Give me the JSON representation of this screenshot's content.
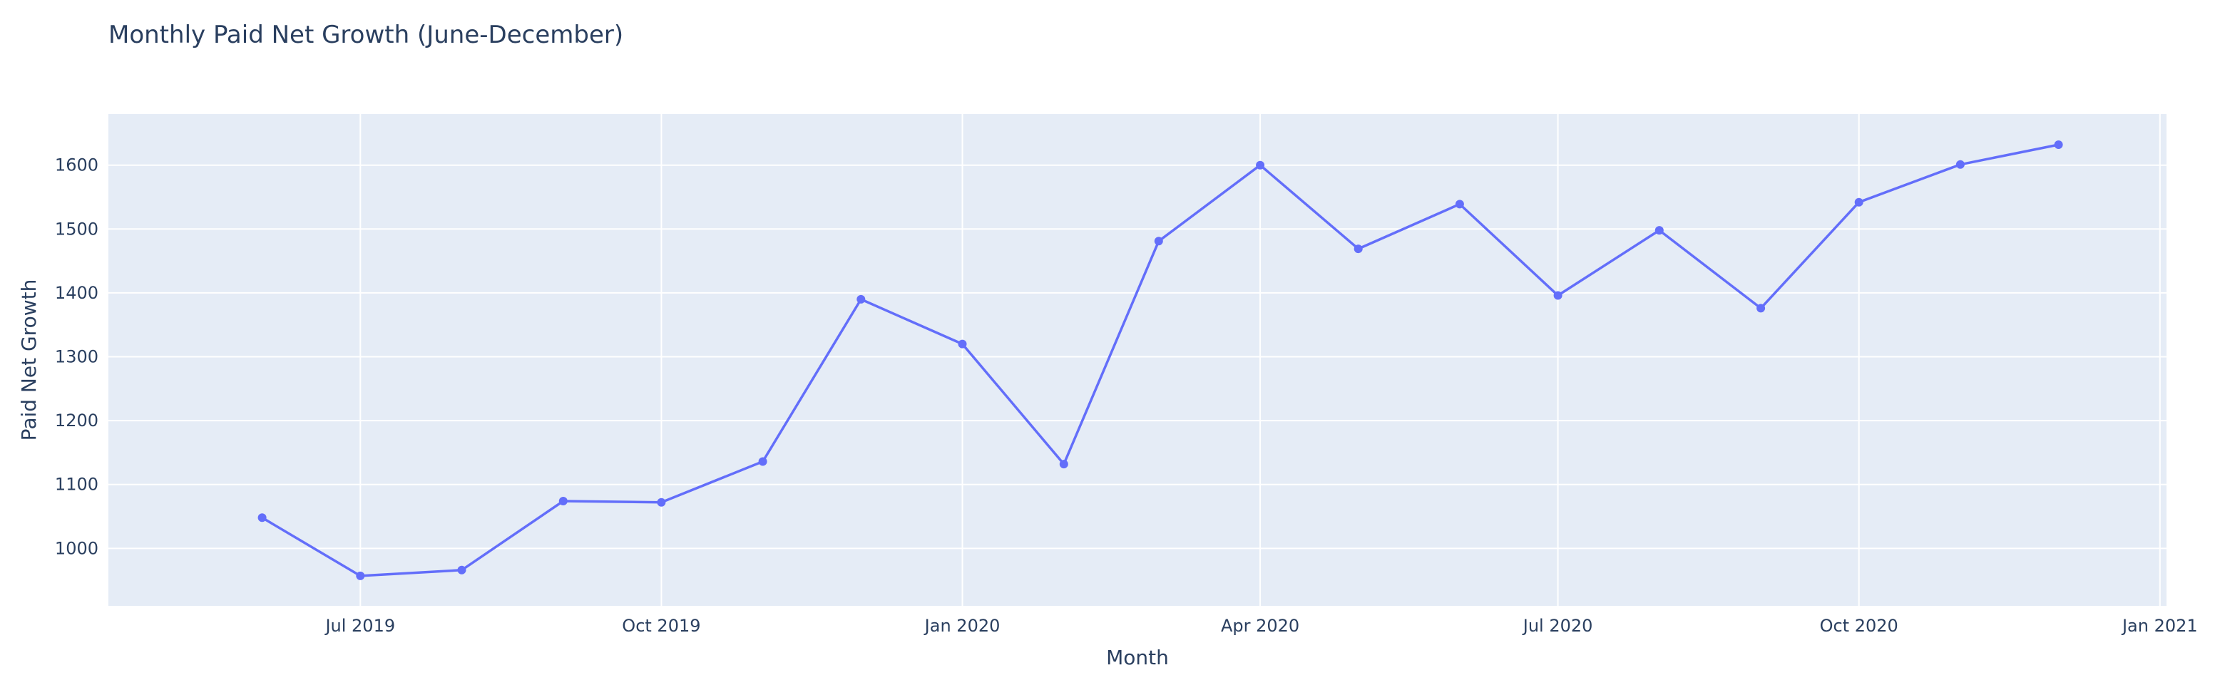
{
  "chart_data": {
    "type": "line",
    "title": "Monthly Paid Net Growth (June-December)",
    "xlabel": "Month",
    "ylabel": "Paid Net Growth",
    "x": [
      "2019-06",
      "2019-07",
      "2019-08",
      "2019-09",
      "2019-10",
      "2019-11",
      "2019-12",
      "2020-01",
      "2020-02",
      "2020-03",
      "2020-04",
      "2020-05",
      "2020-06",
      "2020-07",
      "2020-08",
      "2020-09",
      "2020-10",
      "2020-11",
      "2020-12"
    ],
    "series": [
      {
        "values": [
          1048,
          957,
          966,
          1074,
          1072,
          1136,
          1390,
          1320,
          1132,
          1481,
          1600,
          1469,
          1539,
          1396,
          1498,
          1376,
          1542,
          1601,
          1632
        ]
      }
    ],
    "xlim": [
      "2019-04-15",
      "2021-01-03"
    ],
    "ylim": [
      910,
      1680
    ],
    "x_ticks": [
      {
        "date": "2019-07-01",
        "label": "Jul 2019"
      },
      {
        "date": "2019-10-01",
        "label": "Oct 2019"
      },
      {
        "date": "2020-01-01",
        "label": "Jan 2020"
      },
      {
        "date": "2020-04-01",
        "label": "Apr 2020"
      },
      {
        "date": "2020-07-01",
        "label": "Jul 2020"
      },
      {
        "date": "2020-10-01",
        "label": "Oct 2020"
      },
      {
        "date": "2021-01-01",
        "label": "Jan 2021"
      }
    ],
    "y_ticks": [
      1000,
      1100,
      1200,
      1300,
      1400,
      1500,
      1600
    ],
    "grid": true,
    "legend": "none",
    "colors": {
      "series": "#636efa",
      "plot_background": "#e5ecf6",
      "grid": "#ffffff",
      "text": "#2a3f5f"
    }
  }
}
